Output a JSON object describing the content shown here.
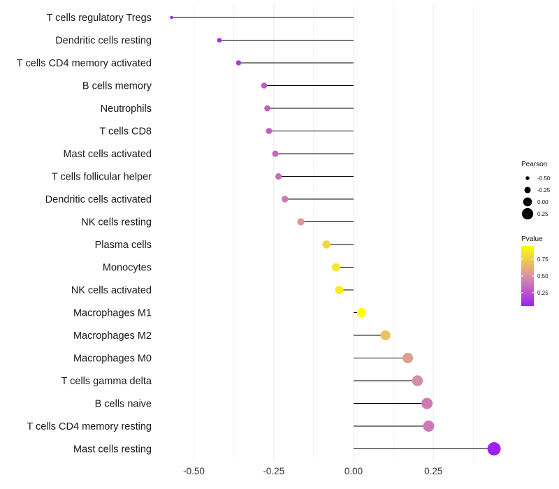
{
  "chart_data": {
    "type": "lollipop",
    "categories": [
      "T cells regulatory  Tregs",
      "Dendritic cells resting",
      "T cells CD4 memory activated",
      "B cells memory",
      "Neutrophils",
      "T cells CD8",
      "Mast cells activated",
      "T cells follicular helper",
      "Dendritic cells activated",
      "NK cells resting",
      "Plasma cells",
      "Monocytes",
      "NK cells activated",
      "Macrophages M1",
      "Macrophages M2",
      "Macrophages M0",
      "T cells gamma delta",
      "B cells naive",
      "T cells CD4 memory resting",
      "Mast cells resting"
    ],
    "pearson": [
      -0.57,
      -0.42,
      -0.36,
      -0.28,
      -0.27,
      -0.265,
      -0.245,
      -0.235,
      -0.215,
      -0.165,
      -0.085,
      -0.055,
      -0.045,
      0.025,
      0.1,
      0.17,
      0.2,
      0.23,
      0.235,
      0.44
    ],
    "pvalue": [
      0.05,
      0.1,
      0.15,
      0.28,
      0.3,
      0.3,
      0.33,
      0.35,
      0.4,
      0.52,
      0.78,
      0.85,
      0.88,
      0.95,
      0.7,
      0.55,
      0.48,
      0.4,
      0.4,
      0.05
    ],
    "xlim": [
      -0.6,
      0.47
    ],
    "x_ticks": [
      -0.5,
      -0.25,
      0.0,
      0.25
    ],
    "x_tick_labels": [
      "-0.50",
      "-0.25",
      "0.00",
      "0.25"
    ],
    "xlabel": "",
    "ylabel": "",
    "title": "",
    "grid": true,
    "legend_size": {
      "title": "Pearson",
      "values": [
        -0.5,
        -0.25,
        0.0,
        0.25
      ],
      "labels": [
        "-0.50",
        "-0.25",
        "0.00",
        "0.25"
      ]
    },
    "legend_color": {
      "title": "Pvalue",
      "range": [
        0.05,
        0.95
      ],
      "ticks": [
        0.25,
        0.5,
        0.75
      ],
      "tick_labels": [
        "0.25",
        "0.50",
        "0.75"
      ],
      "low_color": "#a020f0",
      "mid_color": "#d993a5",
      "high_color": "#ffff00"
    },
    "segment_color": "#000000",
    "grid_color": "#ebebeb"
  }
}
